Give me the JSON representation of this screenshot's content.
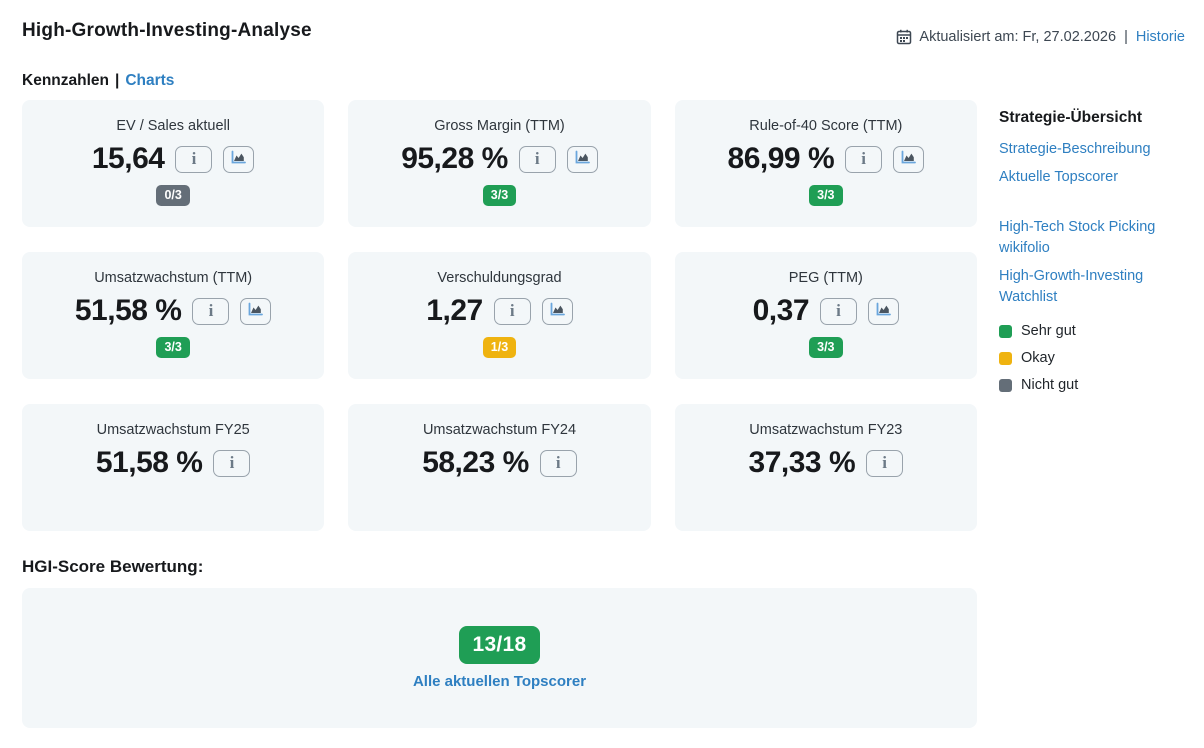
{
  "header": {
    "title": "High-Growth-Investing-Analyse",
    "updated_text": "Aktualisiert am: Fr, 27.02.2026",
    "separator": "|",
    "historie_link": "Historie"
  },
  "tabs": {
    "kennzahlen": "Kennzahlen",
    "separator": "|",
    "charts": "Charts"
  },
  "cards": [
    {
      "label": "EV / Sales aktuell",
      "value": "15,64",
      "badge": "0/3",
      "badge_color": "#646e78",
      "chart_button": true
    },
    {
      "label": "Gross Margin (TTM)",
      "value": "95,28 %",
      "badge": "3/3",
      "badge_color": "#1f9e55",
      "chart_button": true
    },
    {
      "label": "Rule-of-40 Score (TTM)",
      "value": "86,99 %",
      "badge": "3/3",
      "badge_color": "#1f9e55",
      "chart_button": true
    },
    {
      "label": "Umsatzwachstum (TTM)",
      "value": "51,58 %",
      "badge": "3/3",
      "badge_color": "#1f9e55",
      "chart_button": true
    },
    {
      "label": "Verschuldungsgrad",
      "value": "1,27",
      "badge": "1/3",
      "badge_color": "#efb310",
      "chart_button": true
    },
    {
      "label": "PEG (TTM)",
      "value": "0,37",
      "badge": "3/3",
      "badge_color": "#1f9e55",
      "chart_button": true
    },
    {
      "label": "Umsatzwachstum FY25",
      "value": "51,58 %",
      "badge": null,
      "badge_color": null,
      "chart_button": false
    },
    {
      "label": "Umsatzwachstum FY24",
      "value": "58,23 %",
      "badge": null,
      "badge_color": null,
      "chart_button": false
    },
    {
      "label": "Umsatzwachstum FY23",
      "value": "37,33 %",
      "badge": null,
      "badge_color": null,
      "chart_button": false
    }
  ],
  "sidebar": {
    "title": "Strategie-Übersicht",
    "links_top": [
      "Strategie-Beschreibung",
      "Aktuelle Topscorer"
    ],
    "links_bottom": [
      "High-Tech Stock Picking wikifolio",
      "High-Growth-Investing Watchlist"
    ],
    "legend": [
      {
        "label": "Sehr gut",
        "color": "#1f9e55"
      },
      {
        "label": "Okay",
        "color": "#efb310"
      },
      {
        "label": "Nicht gut",
        "color": "#646e78"
      }
    ]
  },
  "hgi_score": {
    "heading": "HGI-Score Bewertung:",
    "score": "13/18",
    "score_color": "#1f9e55",
    "link": "Alle aktuellen Topscorer"
  },
  "icons": {
    "calendar": "calendar-icon",
    "info": "info-icon",
    "area_chart": "area-chart-icon"
  },
  "colors": {
    "accent_blue": "#2e7fc1",
    "card_background": "#f3f7f9",
    "badge_green": "#1f9e55",
    "badge_yellow": "#efb310",
    "badge_gray": "#646e78"
  }
}
